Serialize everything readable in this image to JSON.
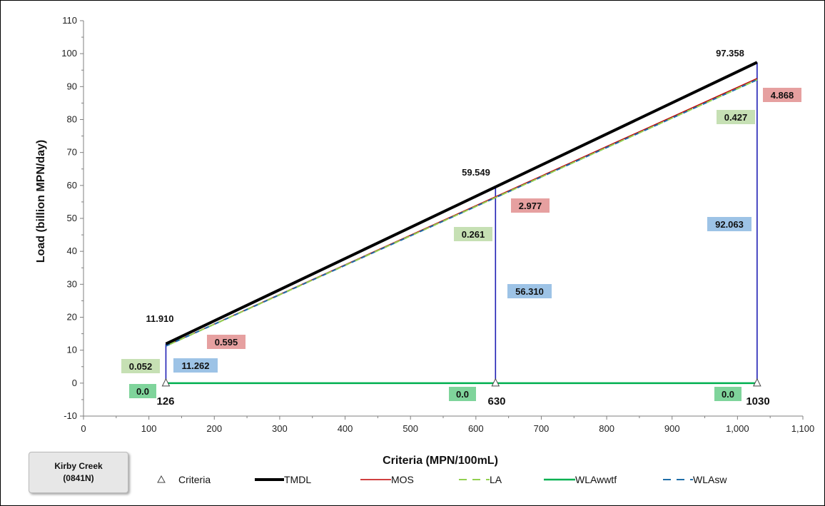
{
  "site": {
    "name": "Kirby Creek",
    "code": "(0841N)"
  },
  "chart_data": {
    "type": "line",
    "xlabel": "Criteria (MPN/100mL)",
    "ylabel": "Load (billion MPN/day)",
    "xlim": [
      0,
      1100
    ],
    "ylim": [
      -10,
      110
    ],
    "x_ticks": [
      0,
      100,
      200,
      300,
      400,
      500,
      600,
      700,
      800,
      900,
      1000,
      1100
    ],
    "x_tick_labels": [
      "0",
      "100",
      "200",
      "300",
      "400",
      "500",
      "600",
      "700",
      "800",
      "900",
      "1,000",
      "1,100"
    ],
    "y_ticks": [
      -10,
      0,
      10,
      20,
      30,
      40,
      50,
      60,
      70,
      80,
      90,
      100,
      110
    ],
    "legend_position": "bottom",
    "grid": false,
    "colors": {
      "TMDL": "#000000",
      "MOS": "#c00000",
      "LA": "#92d050",
      "WLAwwtf": "#00b050",
      "WLAsw": "#1f6ea8",
      "Criteria": "#1f1fb4"
    },
    "series": [
      {
        "name": "Criteria",
        "x": [
          126,
          630,
          1030
        ],
        "y": [
          0,
          0,
          0
        ]
      },
      {
        "name": "TMDL",
        "x": [
          126,
          630,
          1030
        ],
        "y": [
          11.91,
          59.549,
          97.358
        ]
      },
      {
        "name": "MOS",
        "x": [
          126,
          630,
          1030
        ],
        "y": [
          11.315,
          56.572,
          92.49
        ]
      },
      {
        "name": "LA",
        "x": [
          126,
          630,
          1030
        ],
        "y": [
          11.262,
          56.31,
          92.063
        ]
      },
      {
        "name": "WLAwwtf",
        "x": [
          126,
          630,
          1030
        ],
        "y": [
          0,
          0,
          0
        ]
      },
      {
        "name": "WLAsw",
        "x": [
          126,
          630,
          1030
        ],
        "y": [
          11.262,
          56.31,
          92.063
        ]
      }
    ],
    "criteria_labels": [
      "126",
      "630",
      "1030"
    ],
    "annotations": [
      {
        "criteria": 126,
        "tmdl": "11.910",
        "mos": "0.595",
        "la": "0.052",
        "wla_sw": "11.262",
        "wla_wwtf": "0.0"
      },
      {
        "criteria": 630,
        "tmdl": "59.549",
        "mos": "2.977",
        "la": "0.261",
        "wla_sw": "56.310",
        "wla_wwtf": "0.0"
      },
      {
        "criteria": 1030,
        "tmdl": "97.358",
        "mos": "4.868",
        "la": "0.427",
        "wla_sw": "92.063",
        "wla_wwtf": "0.0"
      }
    ]
  }
}
